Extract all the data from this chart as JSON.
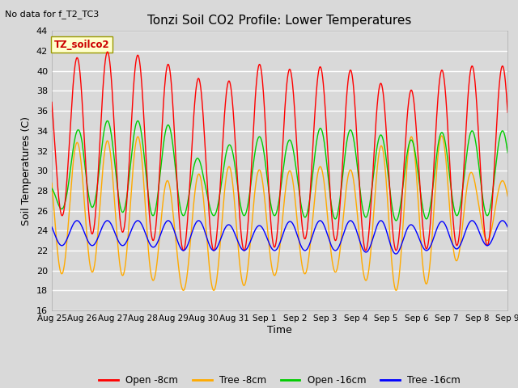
{
  "title": "Tonzi Soil CO2 Profile: Lower Temperatures",
  "subtitle": "No data for f_T2_TC3",
  "ylabel": "Soil Temperatures (C)",
  "xlabel": "Time",
  "ylim": [
    16,
    44
  ],
  "yticks": [
    16,
    18,
    20,
    22,
    24,
    26,
    28,
    30,
    32,
    34,
    36,
    38,
    40,
    42,
    44
  ],
  "x_labels": [
    "Aug 25",
    "Aug 26",
    "Aug 27",
    "Aug 28",
    "Aug 29",
    "Aug 30",
    "Aug 31",
    "Sep 1",
    "Sep 2",
    "Sep 3",
    "Sep 4",
    "Sep 5",
    "Sep 6",
    "Sep 7",
    "Sep 8",
    "Sep 9"
  ],
  "legend_label_box": "TZ_soilco2",
  "legend_entries": [
    "Open -8cm",
    "Tree -8cm",
    "Open -16cm",
    "Tree -16cm"
  ],
  "legend_colors": [
    "#ff0000",
    "#ffaa00",
    "#00cc00",
    "#0000ff"
  ],
  "background_color": "#d9d9d9",
  "plot_bg_color": "#d9d9d9",
  "grid_color": "#ffffff",
  "colors": {
    "open8": "#ff0000",
    "tree8": "#ffaa00",
    "open16": "#00cc00",
    "tree16": "#0000ff"
  },
  "open8_max": [
    40.5,
    41.5,
    42.0,
    41.5,
    40.5,
    39.0,
    39.0,
    41.0,
    40.0,
    40.5,
    40.0,
    38.5,
    38.0,
    40.5,
    40.5
  ],
  "open8_min": [
    26.5,
    23.5,
    24.0,
    23.5,
    22.0,
    22.0,
    22.0,
    22.0,
    23.0,
    23.5,
    22.0,
    22.0,
    22.0,
    22.5,
    22.5
  ],
  "tree8_max": [
    32.0,
    33.0,
    33.0,
    33.5,
    28.0,
    30.0,
    30.5,
    30.0,
    30.0,
    30.5,
    30.0,
    33.0,
    33.5,
    33.5,
    29.0
  ],
  "tree8_min": [
    19.5,
    20.0,
    19.5,
    19.5,
    18.0,
    18.0,
    18.0,
    19.5,
    19.5,
    20.0,
    19.5,
    18.0,
    18.0,
    20.0,
    23.0
  ],
  "open16_max": [
    29.0,
    35.0,
    35.0,
    35.0,
    34.5,
    30.5,
    33.0,
    33.5,
    33.0,
    34.5,
    34.0,
    33.5,
    33.0,
    34.0,
    34.0
  ],
  "open16_min": [
    26.0,
    26.5,
    26.0,
    25.5,
    25.5,
    25.5,
    25.5,
    25.5,
    25.5,
    25.0,
    25.5,
    25.0,
    25.0,
    25.5,
    25.5
  ],
  "tree16_max": [
    25.0,
    25.0,
    25.0,
    25.0,
    25.0,
    25.0,
    24.5,
    24.5,
    25.0,
    25.0,
    25.0,
    25.0,
    24.5,
    25.0,
    25.0
  ],
  "tree16_min": [
    22.5,
    22.5,
    22.5,
    22.5,
    22.0,
    22.0,
    22.0,
    22.0,
    22.0,
    22.0,
    22.0,
    21.5,
    22.0,
    22.0,
    22.5
  ]
}
